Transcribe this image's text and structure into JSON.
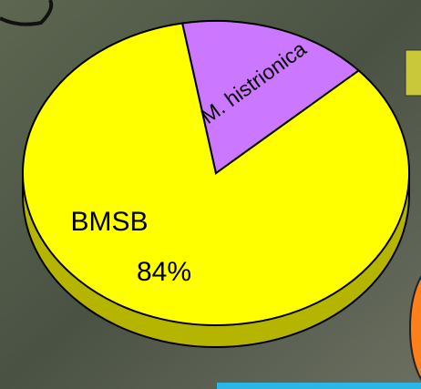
{
  "chart_data": {
    "type": "pie",
    "categories": [
      "BMSB",
      "M. histrionica"
    ],
    "values": [
      84,
      16
    ],
    "value_labels": [
      "84%",
      null
    ],
    "colors": [
      "#ffff00",
      "#cc77ff"
    ]
  }
}
